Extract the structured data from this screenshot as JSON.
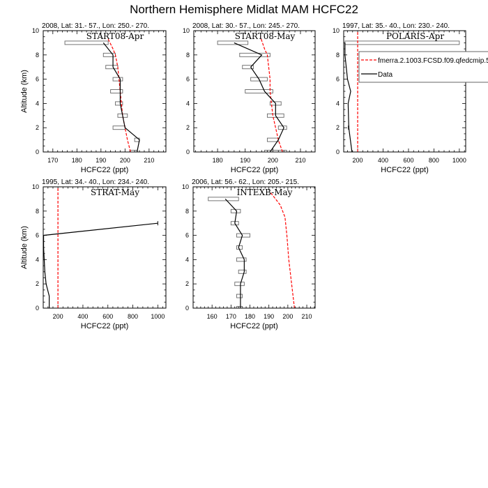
{
  "title": "Northern Hemisphere Midlat MAM HCFC22",
  "legend": {
    "model_label": "fmerra.2.1003.FCSD.f09.qfedcmip.5",
    "data_label": "Data",
    "model_color": "#ff0000",
    "data_color": "#000000"
  },
  "chart_data": [
    {
      "type": "line",
      "subtitle": "2008, Lat:  31.- 57., Lon: 250.- 270.",
      "campaign": "START08-Apr",
      "xlabel": "HCFC22 (ppt)",
      "ylabel": "Altitude (km)",
      "xlim": [
        166,
        217
      ],
      "ylim": [
        0,
        10
      ],
      "xticks": [
        170,
        180,
        190,
        200,
        210
      ],
      "yticks": [
        0,
        2,
        4,
        6,
        8,
        10
      ],
      "data": {
        "alt": [
          0,
          1,
          2,
          3,
          4,
          5,
          6,
          7,
          8,
          9
        ],
        "val": [
          205,
          206,
          200,
          199,
          198,
          198,
          198,
          195,
          195,
          191
        ]
      },
      "ranges": [
        [
          0,
          202,
          205
        ],
        [
          1,
          204,
          206
        ],
        [
          2,
          195,
          200
        ],
        [
          3,
          197,
          201
        ],
        [
          4,
          196,
          199
        ],
        [
          5,
          194,
          199
        ],
        [
          6,
          195,
          199
        ],
        [
          7,
          192,
          197
        ],
        [
          8,
          191,
          196
        ],
        [
          9,
          175,
          193
        ]
      ],
      "model": {
        "alt": [
          0,
          1,
          2,
          3,
          4,
          5,
          6,
          7,
          8,
          8.5,
          9.3
        ],
        "val": [
          202.3,
          201,
          200,
          199,
          198.5,
          198,
          197.5,
          197,
          196,
          195,
          193
        ]
      }
    },
    {
      "type": "line",
      "subtitle": "2008, Lat:  30.- 57., Lon: 245.- 270.",
      "campaign": "START08-May",
      "xlabel": "HCFC22 (ppt)",
      "ylabel": "",
      "xlim": [
        171.4,
        215.3
      ],
      "ylim": [
        0,
        10
      ],
      "xticks": [
        180,
        190,
        200,
        210
      ],
      "yticks": [
        0,
        2,
        4,
        6,
        8,
        10
      ],
      "data": {
        "alt": [
          0,
          1,
          2,
          3,
          4,
          5,
          6,
          7,
          8,
          9
        ],
        "val": [
          199,
          202,
          204,
          201,
          201,
          197,
          195,
          192,
          196,
          186
        ]
      },
      "ranges": [
        [
          0,
          197,
          205
        ],
        [
          1,
          198,
          202
        ],
        [
          2,
          202,
          205
        ],
        [
          3,
          198,
          204
        ],
        [
          4,
          199,
          203
        ],
        [
          5,
          190,
          200
        ],
        [
          6,
          192,
          198
        ],
        [
          7,
          189,
          193
        ],
        [
          8,
          188,
          199
        ],
        [
          9,
          180,
          191
        ]
      ],
      "model": {
        "alt": [
          0,
          1,
          2,
          3,
          4,
          5,
          6,
          7,
          8,
          8.5,
          9.5
        ],
        "val": [
          203.5,
          202,
          201,
          200,
          199.5,
          199,
          199,
          198.5,
          198,
          197,
          195.5
        ]
      }
    },
    {
      "type": "line",
      "subtitle": "1997, Lat: 35.- 40., Lon: 230.- 240.",
      "campaign": "POLARIS-Apr",
      "xlabel": "HCFC22 (ppt)",
      "ylabel": "",
      "xlim": [
        90,
        1050
      ],
      "ylim": [
        0,
        10
      ],
      "xticks": [
        200,
        400,
        600,
        800,
        1000
      ],
      "yticks": [
        0,
        2,
        4,
        6,
        8,
        10
      ],
      "data": {
        "alt": [
          0,
          2,
          4,
          5,
          6,
          8,
          9
        ],
        "val": [
          155,
          130,
          125,
          145,
          120,
          100,
          100
        ]
      },
      "ranges": [
        [
          2,
          125,
          132
        ],
        [
          9,
          100,
          1000
        ]
      ],
      "model": {
        "alt": [
          0,
          10
        ],
        "val": [
          200,
          200
        ]
      }
    },
    {
      "type": "line",
      "subtitle": "1995, Lat: 34.- 40., Lon: 234.- 240.",
      "campaign": "STRAT-May",
      "xlabel": "HCFC22 (ppt)",
      "ylabel": "Altitude (km)",
      "xlim": [
        82,
        1065
      ],
      "ylim": [
        0,
        10
      ],
      "xticks": [
        200,
        400,
        600,
        800,
        1000
      ],
      "yticks": [
        0,
        2,
        4,
        6,
        8,
        10
      ],
      "data": {
        "alt": [
          0,
          1,
          2,
          3,
          4,
          5,
          6,
          7
        ],
        "val": [
          130,
          130,
          105,
          95,
          90,
          85,
          85,
          1000
        ]
      },
      "ranges": [
        [
          7,
          1000,
          1000
        ]
      ],
      "model": {
        "alt": [
          0,
          10
        ],
        "val": [
          200,
          200
        ]
      }
    },
    {
      "type": "line",
      "subtitle": "2006, Lat: 56.- 62., Lon: 205.- 215.",
      "campaign": "INTEXB-May",
      "xlabel": "HCFC22 (ppt)",
      "ylabel": "",
      "xlim": [
        150,
        214.4
      ],
      "ylim": [
        0,
        10
      ],
      "xticks": [
        160,
        170,
        180,
        190,
        200,
        210
      ],
      "yticks": [
        0,
        2,
        4,
        6,
        8,
        10
      ],
      "data": {
        "alt": [
          0,
          1,
          2,
          3,
          4,
          5,
          6,
          7,
          8,
          9
        ],
        "val": [
          175,
          175,
          175,
          177,
          177,
          174,
          176,
          172,
          173,
          167
        ]
      },
      "ranges": [
        [
          0,
          173,
          176
        ],
        [
          1,
          173,
          176
        ],
        [
          2,
          172,
          177
        ],
        [
          3,
          174,
          178
        ],
        [
          4,
          173,
          178
        ],
        [
          5,
          173,
          176
        ],
        [
          6,
          173,
          180
        ],
        [
          7,
          170,
          174
        ],
        [
          8,
          170,
          175
        ],
        [
          9,
          158,
          174
        ]
      ],
      "model": {
        "alt": [
          0,
          2,
          4,
          5,
          6,
          7.5,
          8.5,
          9.5
        ],
        "val": [
          203.5,
          202,
          200.5,
          200,
          199.5,
          198.5,
          196,
          191
        ]
      }
    }
  ]
}
